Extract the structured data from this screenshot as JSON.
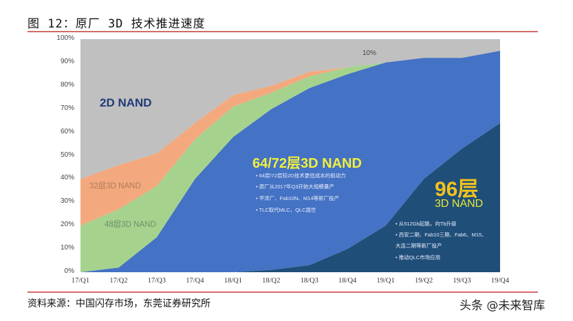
{
  "figure": {
    "title": "图 12：原厂 3D 技术推进速度",
    "source": "资料来源：中国闪存市场，东莞证券研究所",
    "watermark": "头条 @未来智库"
  },
  "colors": {
    "nand2d": "#c0c0c0",
    "nand32": "#f3a97d",
    "nand48": "#a5d38d",
    "nand6472": "#4472c4",
    "nand96": "#1f4e79",
    "rule": "#d46a6a"
  },
  "labels": {
    "nand2d": "2D NAND",
    "nand32": "32层3D NAND",
    "nand48": "48层3D NAND",
    "annot10": "10%",
    "nand6472": "64/72层3D NAND",
    "nand6472_bullets": [
      "64层/72层较2D技术更低成本的驱动力",
      "原厂从2017年Q3开始大规模量产",
      "平泽厂、Fab10N、M14等新厂投产",
      "TLC取代MLC，QLC面世"
    ],
    "nand96_title": "96层",
    "nand96_sub": "3D NAND",
    "nand96_bullets": [
      "从512Gb起跳，向Tb升级",
      "西安二期、Fab10三期、Fab6、M15、",
      "大连二期等新厂投产",
      "推动QLC市场应用"
    ]
  },
  "chart_data": {
    "type": "area",
    "stacked": true,
    "title": "原厂 3D 技术推进速度",
    "xlabel": "",
    "ylabel": "",
    "ylim": [
      0,
      100
    ],
    "yticks": [
      "0%",
      "10%",
      "20%",
      "30%",
      "40%",
      "50%",
      "60%",
      "70%",
      "80%",
      "90%",
      "100%"
    ],
    "categories": [
      "17/Q1",
      "17/Q2",
      "17/Q3",
      "17/Q4",
      "18/Q1",
      "18/Q2",
      "18/Q3",
      "18/Q4",
      "19/Q1",
      "19/Q2",
      "19/Q3",
      "19/Q4"
    ],
    "series": [
      {
        "name": "96层3D NAND",
        "values": [
          0,
          0,
          0,
          0,
          0,
          1,
          3,
          10,
          20,
          40,
          53,
          64
        ]
      },
      {
        "name": "64/72层3D NAND",
        "values": [
          0,
          2,
          15,
          40,
          58,
          69,
          76,
          75,
          70,
          52,
          39,
          31
        ]
      },
      {
        "name": "48层3D NAND",
        "values": [
          20,
          25,
          22,
          17,
          13,
          7,
          5,
          3,
          0,
          0,
          0,
          0
        ]
      },
      {
        "name": "32层3D NAND",
        "values": [
          20,
          19,
          14,
          7,
          5,
          3,
          2,
          0,
          0,
          0,
          0,
          0
        ]
      },
      {
        "name": "2D NAND",
        "values": [
          60,
          54,
          49,
          36,
          24,
          20,
          14,
          12,
          10,
          8,
          8,
          5
        ]
      }
    ],
    "annotations": [
      "10%"
    ],
    "grid": false,
    "legend": "inline labels"
  }
}
